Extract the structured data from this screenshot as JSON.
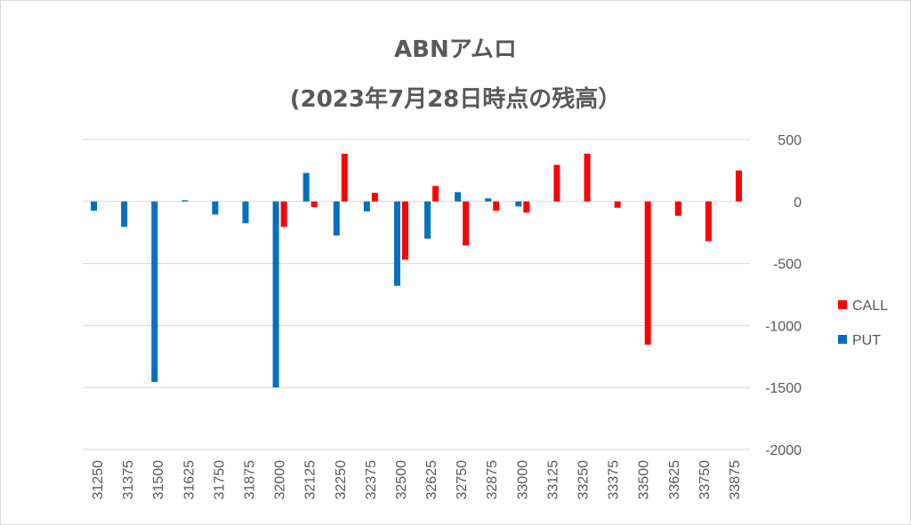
{
  "chart_data": {
    "type": "bar",
    "title": "ABNアムロ",
    "subtitle": "(2023年7月28日時点の残高）",
    "categories": [
      "31250",
      "31375",
      "31500",
      "31625",
      "31750",
      "31875",
      "32000",
      "32125",
      "32250",
      "32375",
      "32500",
      "32625",
      "32750",
      "32875",
      "33000",
      "33125",
      "33250",
      "33375",
      "33500",
      "33625",
      "33750",
      "33875"
    ],
    "series": [
      {
        "name": "PUT",
        "color": "#0070C0",
        "values": [
          -75,
          -205,
          -1455,
          10,
          -105,
          -175,
          -1500,
          230,
          -275,
          -80,
          -680,
          -300,
          75,
          25,
          -40,
          0,
          0,
          0,
          0,
          0,
          0,
          0
        ]
      },
      {
        "name": "CALL",
        "color": "#FF0000",
        "values": [
          0,
          0,
          0,
          0,
          0,
          0,
          -205,
          -45,
          385,
          70,
          -470,
          125,
          -355,
          -75,
          -90,
          295,
          385,
          -50,
          -1155,
          -115,
          -320,
          250
        ]
      }
    ],
    "y_axis": {
      "min": -2000,
      "max": 500,
      "step": 500,
      "ticks": [
        "500",
        "0",
        "-500",
        "-1000",
        "-1500",
        "-2000"
      ],
      "position": "right"
    },
    "legend": {
      "position": "right",
      "entries": [
        "CALL",
        "PUT"
      ]
    },
    "grid": true
  }
}
